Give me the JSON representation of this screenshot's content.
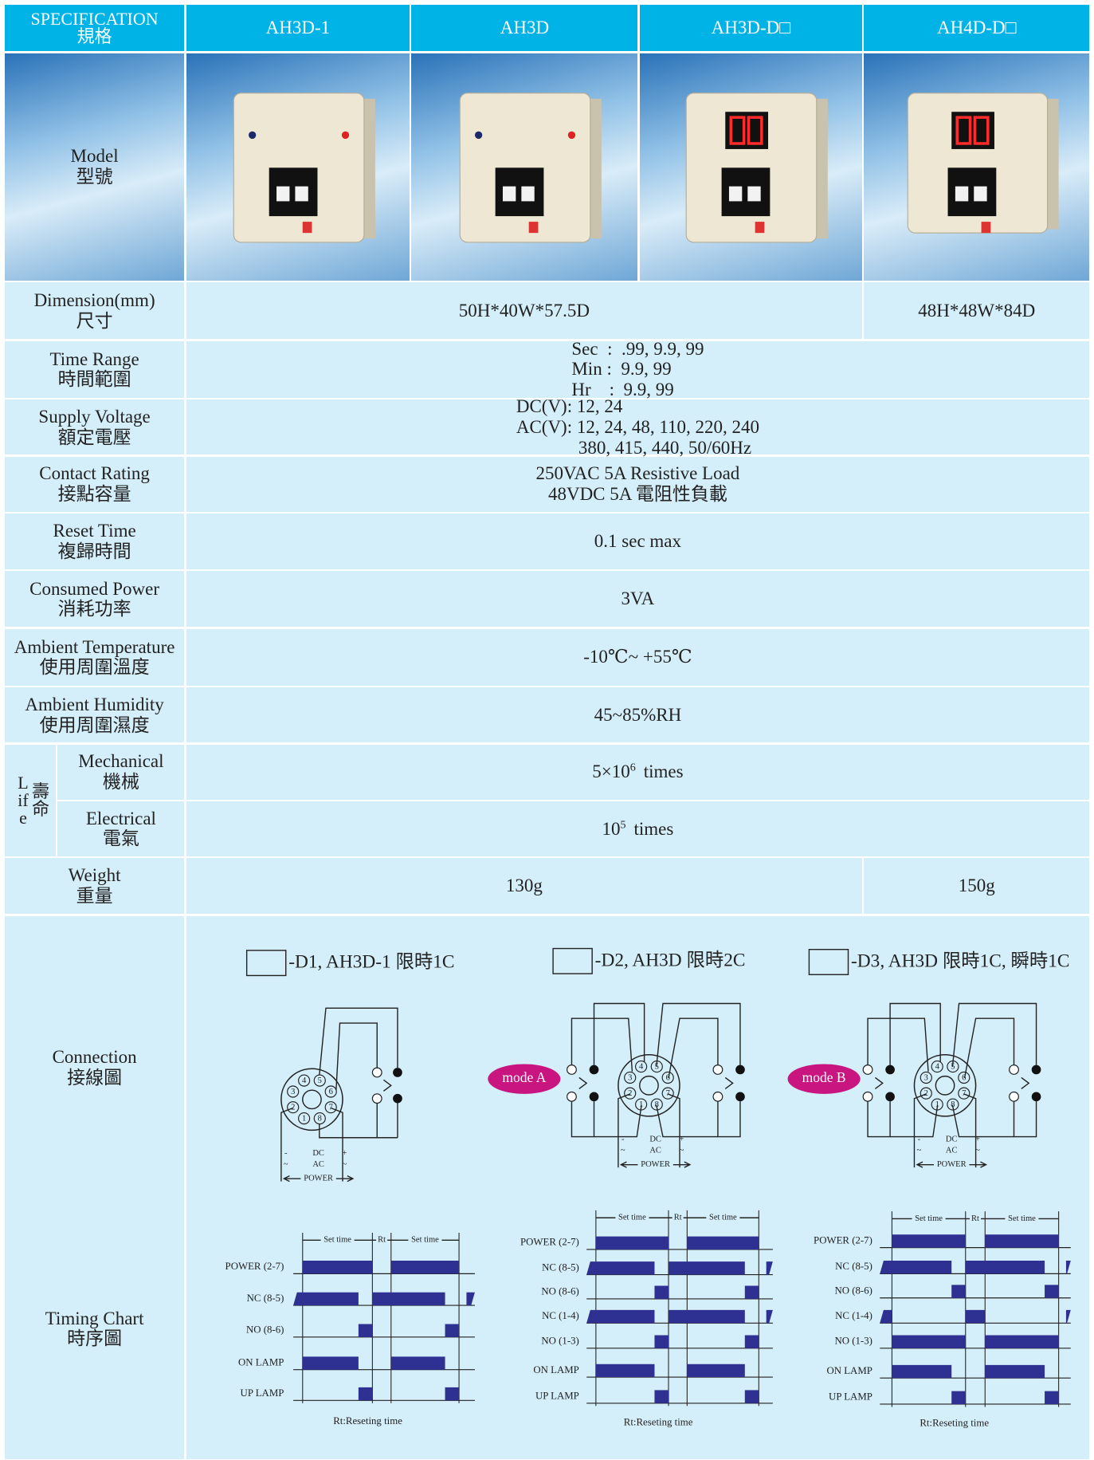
{
  "header": {
    "spec": "SPECIFICATION",
    "spec_zh": "規格",
    "models": [
      "AH3D-1",
      "AH3D",
      "AH3D-D□",
      "AH4D-D□"
    ]
  },
  "model": {
    "label": "Model",
    "label_zh": "型號"
  },
  "dimension": {
    "label": "Dimension(mm)",
    "label_zh": "尺寸",
    "values": [
      "50H*40W*57.5D",
      "48H*48W*84D"
    ]
  },
  "time_range": {
    "label": "Time Range",
    "label_zh": "時間範圍",
    "lines": [
      "Sec  :  .99, 9.9, 99",
      "Min :  9.9, 99",
      "Hr    :  9.9, 99"
    ]
  },
  "supply_voltage": {
    "label": "Supply Voltage",
    "label_zh": "額定電壓",
    "lines": [
      "DC(V): 12, 24",
      "AC(V): 12, 24, 48, 110, 220, 240",
      "380, 415, 440, 50/60Hz"
    ]
  },
  "contact_rating": {
    "label": "Contact Rating",
    "label_zh": "接點容量",
    "lines": [
      "250VAC  5A  Resistive Load",
      "48VDC  5A 電阻性負載"
    ]
  },
  "reset_time": {
    "label": "Reset Time",
    "label_zh": "複歸時間",
    "value": "0.1 sec max"
  },
  "consumed_power": {
    "label": "Consumed Power",
    "label_zh": "消耗功率",
    "value": "3VA"
  },
  "ambient_temperature": {
    "label": "Ambient Temperature",
    "label_zh": "使用周圍溫度",
    "value": "-10℃~ +55℃"
  },
  "ambient_humidity": {
    "label": "Ambient Humidity",
    "label_zh": "使用周圍濕度",
    "value": "45~85%RH"
  },
  "life": {
    "label": "Life",
    "label_zh": "壽命",
    "mechanical": {
      "label": "Mechanical",
      "label_zh": "機械",
      "base": "5×10",
      "exponent": "6",
      "unit": "times"
    },
    "electrical": {
      "label": "Electrical",
      "label_zh": "電氣",
      "base": "10",
      "exponent": "5",
      "unit": "times"
    }
  },
  "weight": {
    "label": "Weight",
    "label_zh": "重量",
    "values": [
      "130g",
      "150g"
    ]
  },
  "connection": {
    "label": "Connection",
    "label_zh": "接線圖",
    "diagrams": [
      {
        "title": "-D1, AH3D-1 限時1C"
      },
      {
        "title": "-D2, AH3D 限時2C",
        "mode": "mode A"
      },
      {
        "title": "-D3, AH3D 限時1C, 瞬時1C",
        "mode": "mode B"
      }
    ],
    "pins": [
      "1",
      "2",
      "3",
      "4",
      "5",
      "6",
      "7",
      "8"
    ],
    "power": {
      "minus": "-",
      "plus": "+",
      "dc": "DC",
      "ac": "AC",
      "tilde": "~",
      "power": "POWER"
    }
  },
  "timing_chart": {
    "label": "Timing Chart",
    "label_zh": "時序圖",
    "set_time": "Set time",
    "rt": "Rt",
    "note": "Rt:Reseting time",
    "charts": [
      {
        "signals": [
          "POWER (2-7)",
          "NC (8-5)",
          "NO (8-6)",
          "ON LAMP",
          "UP LAMP"
        ]
      },
      {
        "signals": [
          "POWER (2-7)",
          "NC (8-5)",
          "NO (8-6)",
          "NC (1-4)",
          "NO (1-3)",
          "ON LAMP",
          "UP LAMP"
        ]
      },
      {
        "signals": [
          "POWER (2-7)",
          "NC (8-5)",
          "NO (8-6)",
          "NC (1-4)",
          "NO (1-3)",
          "ON LAMP",
          "UP LAMP"
        ]
      }
    ]
  }
}
